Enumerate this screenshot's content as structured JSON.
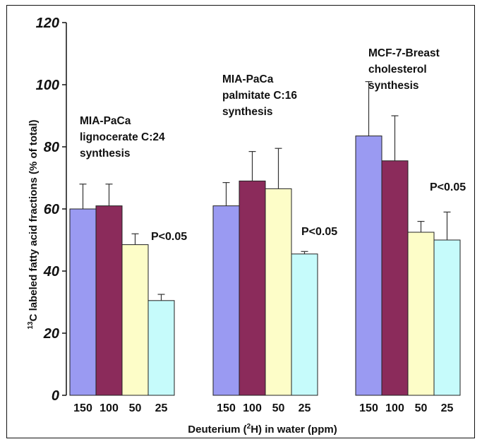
{
  "chart_data": {
    "type": "bar",
    "ylabel_prefix": "13",
    "ylabel_text": "C labeled fatty acid fractions (% of total)",
    "xlabel_prefix": "Deuterium (",
    "xlabel_sup": "2",
    "xlabel_suffix": "H) in water (ppm)",
    "ylim": [
      0,
      120
    ],
    "yticks": [
      "0",
      "20",
      "40",
      "60",
      "80",
      "100",
      "120"
    ],
    "categories": [
      "150",
      "100",
      "50",
      "25"
    ],
    "colors": [
      "#9a9af2",
      "#8b2b5b",
      "#fdfdc8",
      "#c6fbfb"
    ],
    "groups": [
      {
        "annotation": [
          "MIA-PaCa",
          "lignocerate C:24",
          "synthesis"
        ],
        "pvalue": "P<0.05",
        "values": [
          60,
          61,
          48.5,
          30.5
        ],
        "errors": [
          8,
          7,
          3.5,
          2
        ]
      },
      {
        "annotation": [
          "MIA-PaCa",
          "palmitate C:16",
          "synthesis"
        ],
        "pvalue": "P<0.05",
        "values": [
          61,
          69,
          66.5,
          45.5
        ],
        "errors": [
          7.5,
          9.5,
          13,
          0.8
        ]
      },
      {
        "annotation": [
          "MCF-7-Breast",
          "cholesterol",
          "synthesis"
        ],
        "pvalue": "P<0.05",
        "values": [
          83.5,
          75.5,
          52.5,
          50
        ],
        "errors": [
          17.5,
          14.5,
          3.5,
          9
        ]
      }
    ]
  }
}
